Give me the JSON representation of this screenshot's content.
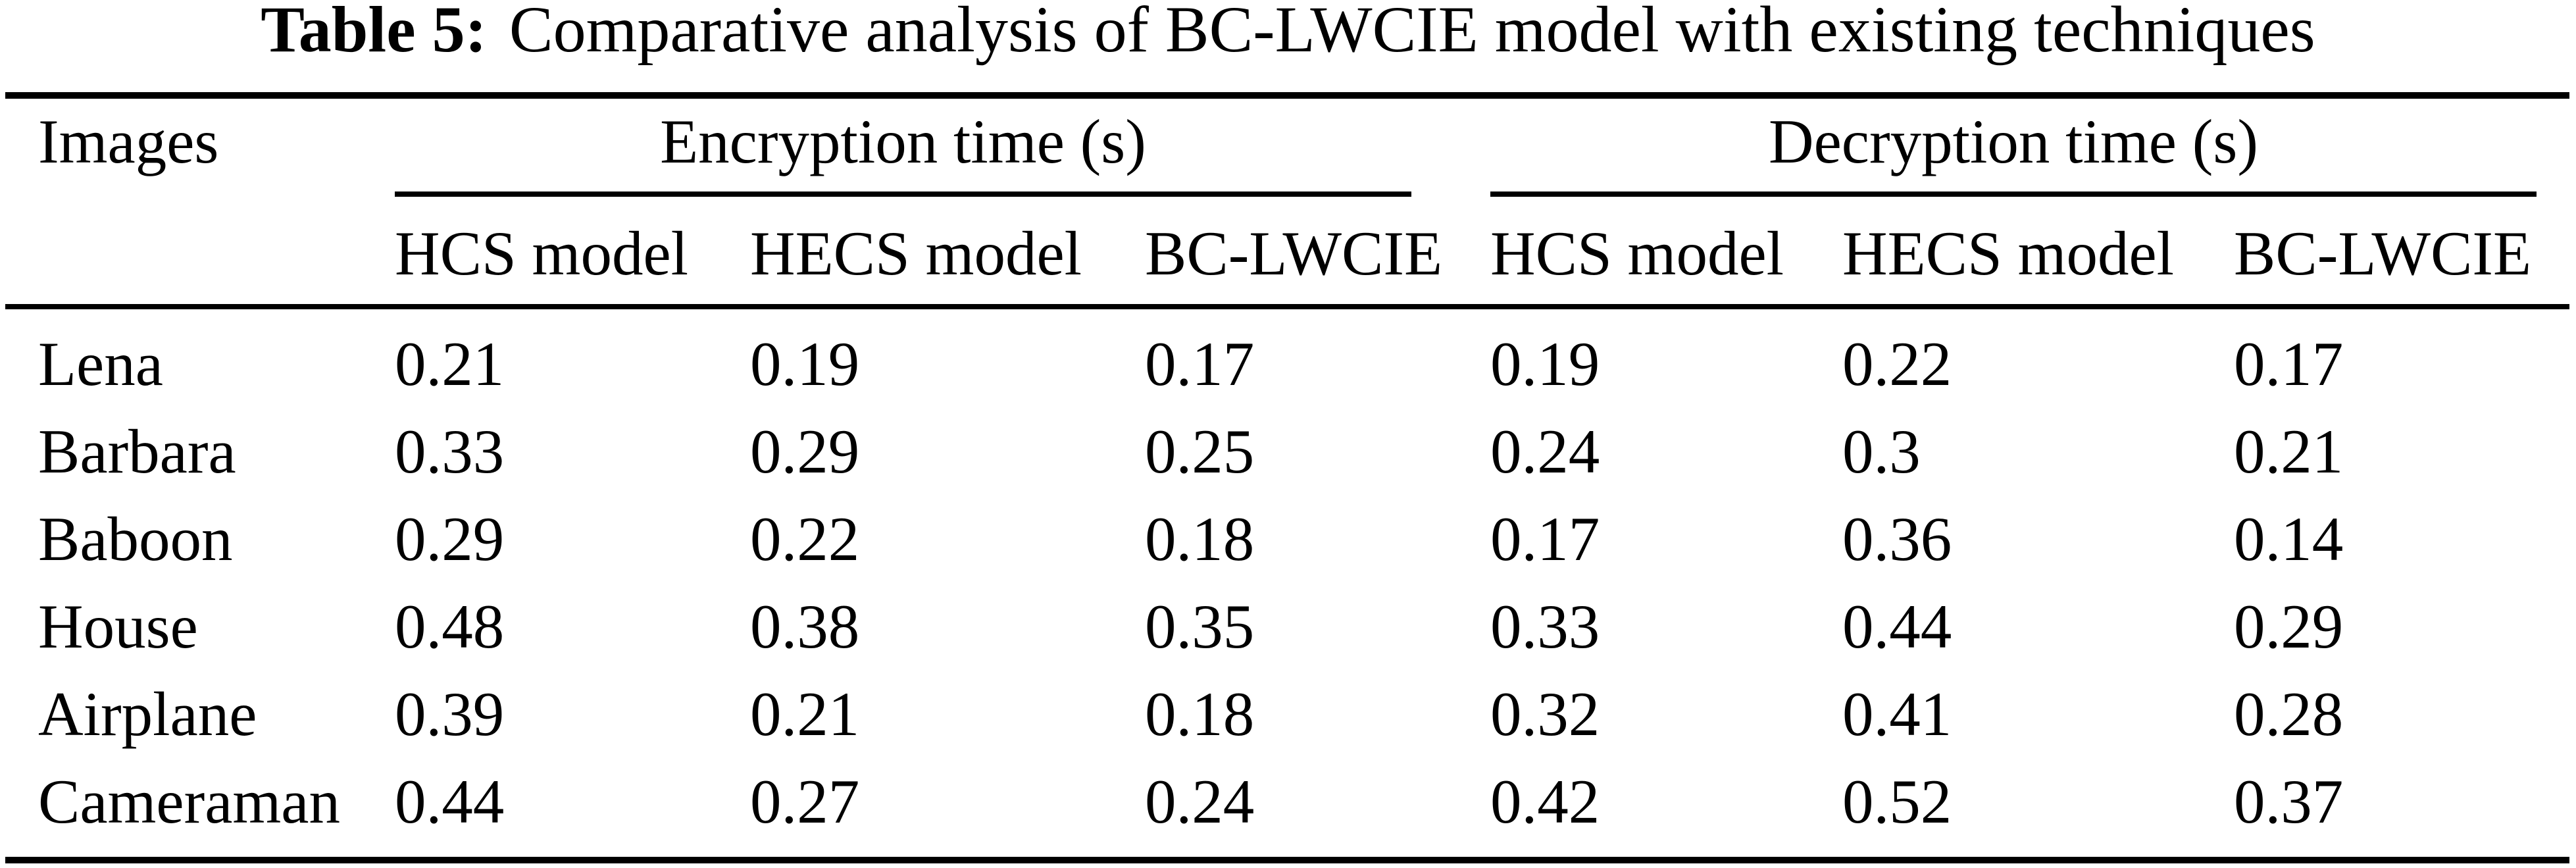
{
  "caption": {
    "label": "Table 5:",
    "text": "Comparative analysis of BC-LWCIE model with existing techniques"
  },
  "headers": {
    "images": "Images",
    "encryption_group": "Encryption time (s)",
    "decryption_group": "Decryption time (s)"
  },
  "sub_headers": [
    "HCS model",
    "HECS model",
    "BC-LWCIE",
    "HCS model",
    "HECS model",
    "BC-LWCIE"
  ],
  "rows": [
    {
      "image": "Lena",
      "values": [
        "0.21",
        "0.19",
        "0.17",
        "0.19",
        "0.22",
        "0.17"
      ]
    },
    {
      "image": "Barbara",
      "values": [
        "0.33",
        "0.29",
        "0.25",
        "0.24",
        "0.3",
        "0.21"
      ]
    },
    {
      "image": "Baboon",
      "values": [
        "0.29",
        "0.22",
        "0.18",
        "0.17",
        "0.36",
        "0.14"
      ]
    },
    {
      "image": "House",
      "values": [
        "0.48",
        "0.38",
        "0.35",
        "0.33",
        "0.44",
        "0.29"
      ]
    },
    {
      "image": "Airplane",
      "values": [
        "0.39",
        "0.21",
        "0.18",
        "0.32",
        "0.41",
        "0.28"
      ]
    },
    {
      "image": "Cameraman",
      "values": [
        "0.44",
        "0.27",
        "0.24",
        "0.42",
        "0.52",
        "0.37"
      ]
    }
  ],
  "colors": {
    "text": "#000000",
    "background": "#ffffff",
    "rule": "#000000"
  }
}
